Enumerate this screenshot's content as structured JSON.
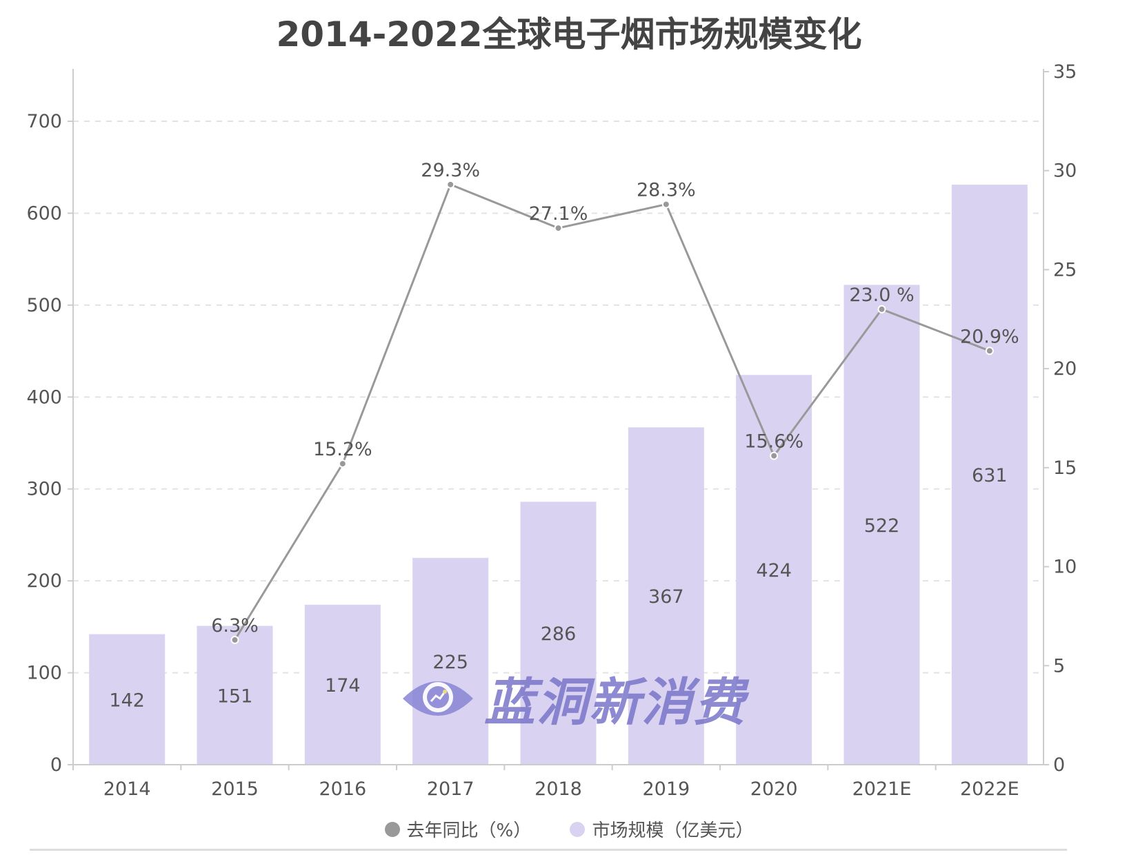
{
  "chart_data": {
    "type": "bar",
    "title": "2014-2022全球电子烟市场规模变化",
    "categories": [
      "2014",
      "2015",
      "2016",
      "2017",
      "2018",
      "2019",
      "2020",
      "2021E",
      "2022E"
    ],
    "series": [
      {
        "name": "市场规模（亿美元）",
        "type": "bar",
        "axis": "left",
        "color": "#d9d2f0",
        "values": [
          142,
          151,
          174,
          225,
          286,
          367,
          424,
          522,
          631
        ],
        "labels": [
          "142",
          "151",
          "174",
          "225",
          "286",
          "367",
          "424",
          "522",
          "631"
        ]
      },
      {
        "name": "去年同比（%）",
        "type": "line",
        "axis": "right",
        "color": "#999999",
        "values": [
          null,
          6.3,
          15.2,
          29.3,
          27.1,
          28.3,
          15.6,
          23.0,
          20.9
        ],
        "labels": [
          "",
          "6.3%",
          "15.2%",
          "29.3%",
          "27.1%",
          "28.3%",
          "15.6%",
          "23.0 %",
          "20.9%"
        ]
      }
    ],
    "left_axis": {
      "ylim": [
        0,
        750
      ],
      "ticks": [
        "0",
        "100",
        "200",
        "300",
        "400",
        "500",
        "600",
        "700"
      ]
    },
    "right_axis": {
      "ylim": [
        0,
        35
      ],
      "ticks": [
        "0",
        "5",
        "10",
        "15",
        "20",
        "25",
        "30",
        "35"
      ]
    },
    "grid": true,
    "legend": "bottom"
  },
  "watermark": "蓝洞新消费"
}
